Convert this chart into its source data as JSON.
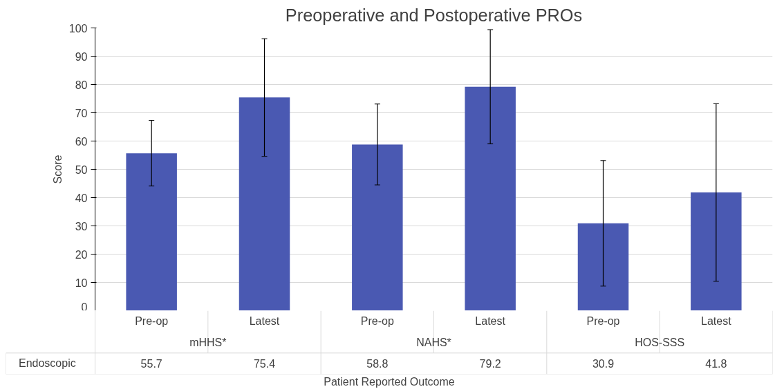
{
  "chart_data": {
    "type": "bar",
    "title": "Preoperative and Postoperative PROs",
    "xlabel": "Patient Reported Outcome",
    "ylabel": "Score",
    "categories": [
      "Pre-op",
      "Latest",
      "Pre-op",
      "Latest",
      "Pre-op",
      "Latest"
    ],
    "annotations": [
      "mHHS*",
      "NAHS*",
      "HOS-SSS"
    ],
    "series": [
      {
        "name": "Endoscopic",
        "color": "#4a59b2",
        "values": [
          55.7,
          75.4,
          58.8,
          79.2,
          30.9,
          41.8
        ],
        "errors": [
          11.6,
          20.8,
          14.3,
          20.2,
          22.2,
          31.4
        ]
      }
    ],
    "ylim": [
      0,
      100
    ],
    "yticks": [
      0,
      10,
      20,
      30,
      40,
      50,
      60,
      70,
      80,
      90,
      100
    ],
    "grid": "y",
    "legend": "bottom",
    "data_labels": true
  }
}
